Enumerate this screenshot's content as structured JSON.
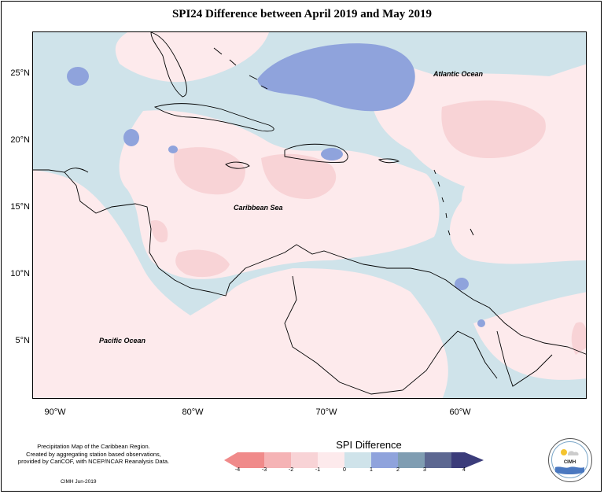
{
  "title": "SPI24 Difference between April 2019 and May 2019",
  "map": {
    "x_ticks": [
      "90°W",
      "80°W",
      "70°W",
      "60°W"
    ],
    "y_ticks": [
      "25°N",
      "20°N",
      "15°N",
      "10°N",
      "5°N"
    ],
    "labels": {
      "atlantic": "Atlantic Ocean",
      "caribbean": "Caribbean Sea",
      "pacific": "Pacific Ocean"
    }
  },
  "legend": {
    "title": "SPI Difference",
    "ticks": [
      "-4",
      "-3",
      "-2",
      "-1",
      "0",
      "1",
      "2",
      "3",
      "4"
    ],
    "colors": [
      "#f08a8a",
      "#f5b3b5",
      "#f8d3d6",
      "#fdeaec",
      "#cfe3ea",
      "#8fa3dc",
      "#7f9db2",
      "#5c6791",
      "#3b3c7a"
    ]
  },
  "footer": {
    "description_lines": [
      "Precipitation Map of the Caribbean Region.",
      "Created by aggregating station based observations,",
      "provided by CariCOF, with NCEP/NCAR Reanalysis Data."
    ],
    "credit": "CIMH  Jun-2019",
    "logo_text": "CIMH"
  }
}
